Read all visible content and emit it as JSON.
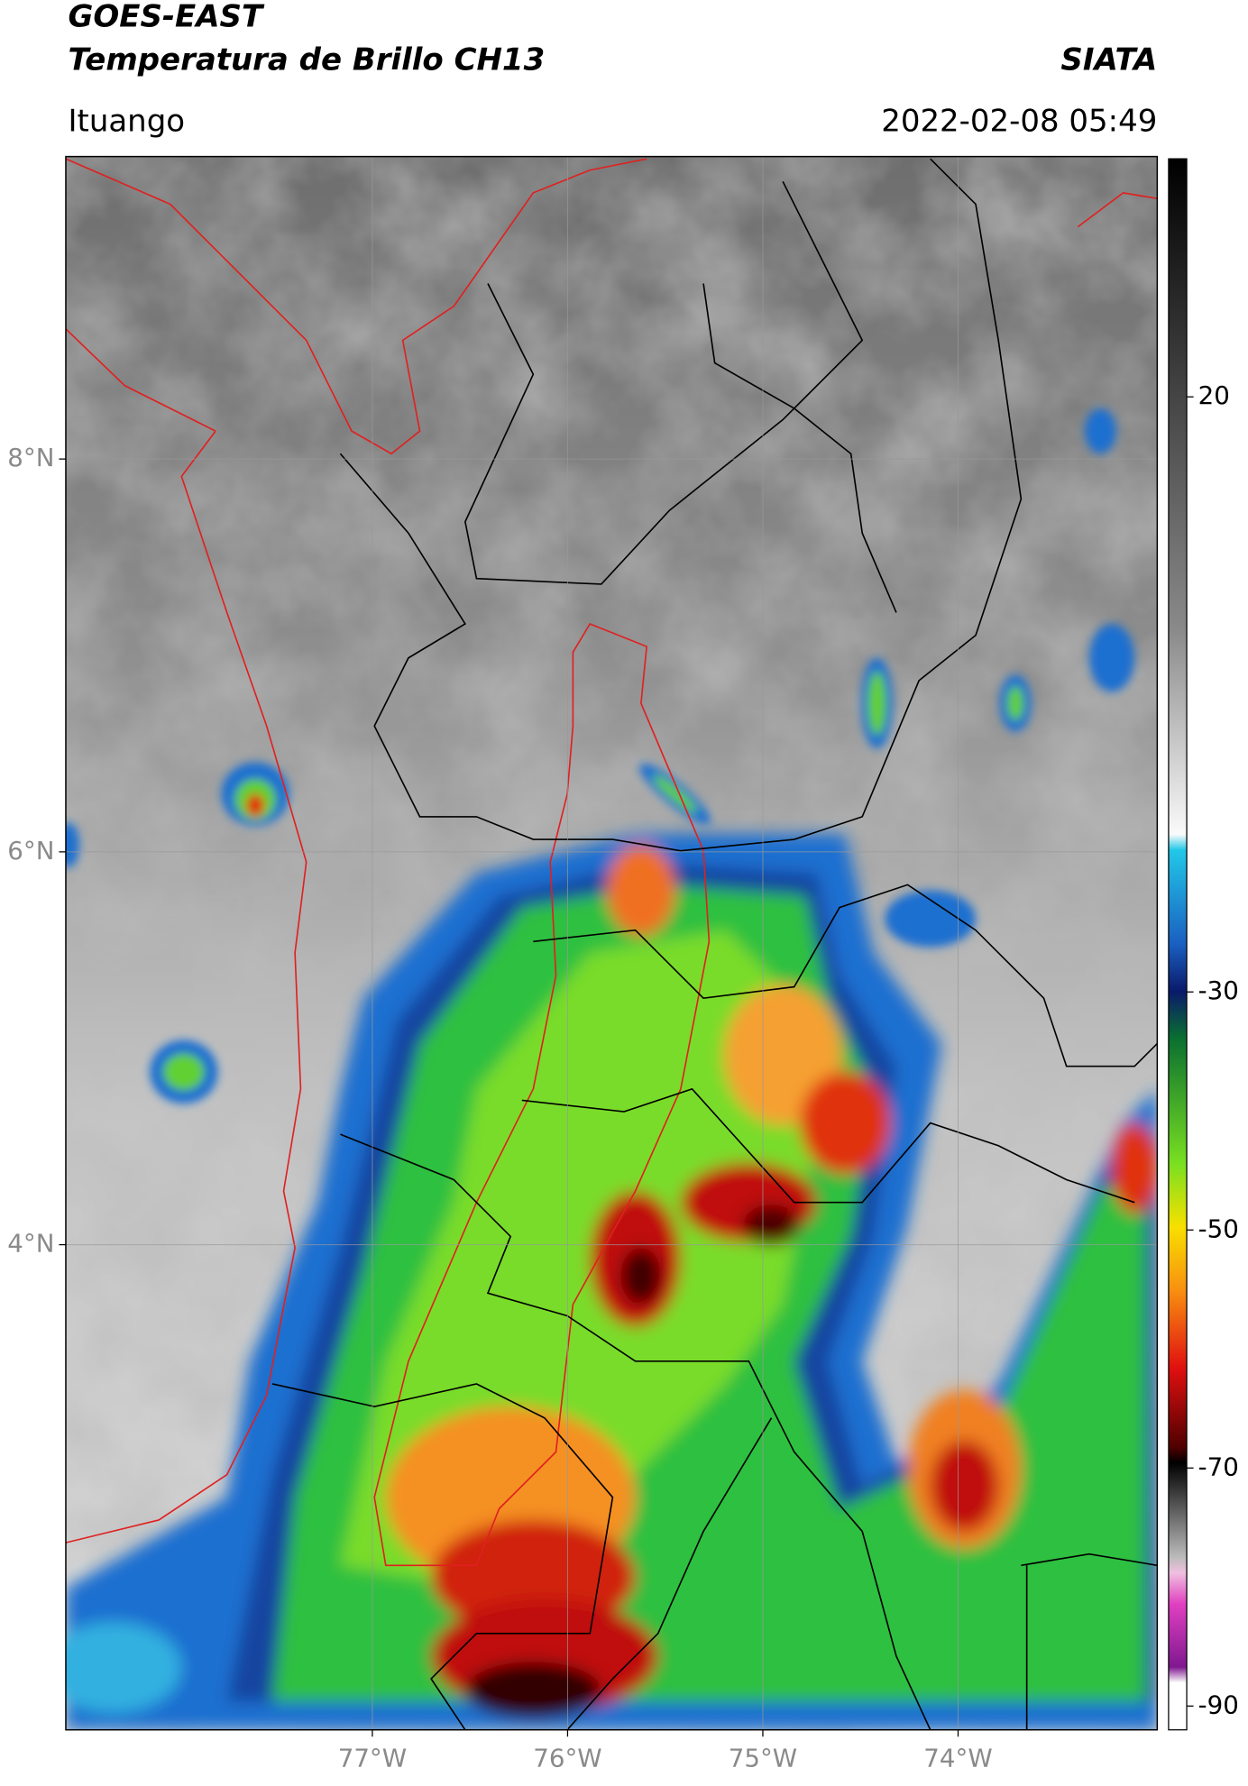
{
  "header": {
    "title": "GOES-EAST",
    "subtitle": "Temperatura de Brillo CH13",
    "source": "SIATA",
    "location": "Ituango",
    "datetime": "2022-02-08 05:49"
  },
  "map": {
    "xlim": [
      -78.57,
      -72.98
    ],
    "ylim": [
      1.53,
      9.54
    ],
    "xticks": [
      {
        "value": -77,
        "label": "77°W"
      },
      {
        "value": -76,
        "label": "76°W"
      },
      {
        "value": -75,
        "label": "75°W"
      },
      {
        "value": -74,
        "label": "74°W"
      }
    ],
    "yticks": [
      {
        "value": 8,
        "label": "8°N"
      },
      {
        "value": 6,
        "label": "6°N"
      },
      {
        "value": 4,
        "label": "4°N"
      }
    ],
    "grid": true
  },
  "colorbar": {
    "lim": [
      -92,
      40
    ],
    "ticks": [
      20,
      -30,
      -50,
      -70,
      -90
    ]
  }
}
